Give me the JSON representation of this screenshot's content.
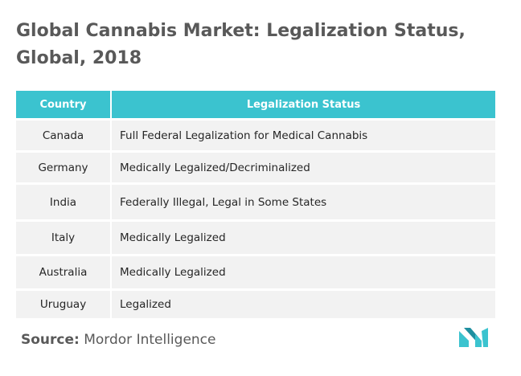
{
  "title": "Global Cannabis Market: Legalization Status, Global, 2018",
  "table": {
    "headers": [
      "Country",
      "Legalization Status"
    ],
    "rows": [
      {
        "country": "Canada",
        "status": "Full Federal Legalization for Medical Cannabis"
      },
      {
        "country": "Germany",
        "status": "Medically Legalized/Decriminalized"
      },
      {
        "country": "India",
        "status": "Federally Illegal, Legal in Some States"
      },
      {
        "country": "Italy",
        "status": "Medically Legalized"
      },
      {
        "country": "Australia",
        "status": "Medically Legalized"
      },
      {
        "country": "Uruguay",
        "status": "Legalized"
      }
    ]
  },
  "source": {
    "label": "Source:",
    "text": "Mordor Intelligence"
  },
  "colors": {
    "header": "#3bc3cf",
    "row": "#f2f2f2",
    "title": "#595959",
    "logo": "#3bc3cf"
  },
  "logo": {
    "icon": "mordor-intelligence-logo-icon"
  }
}
